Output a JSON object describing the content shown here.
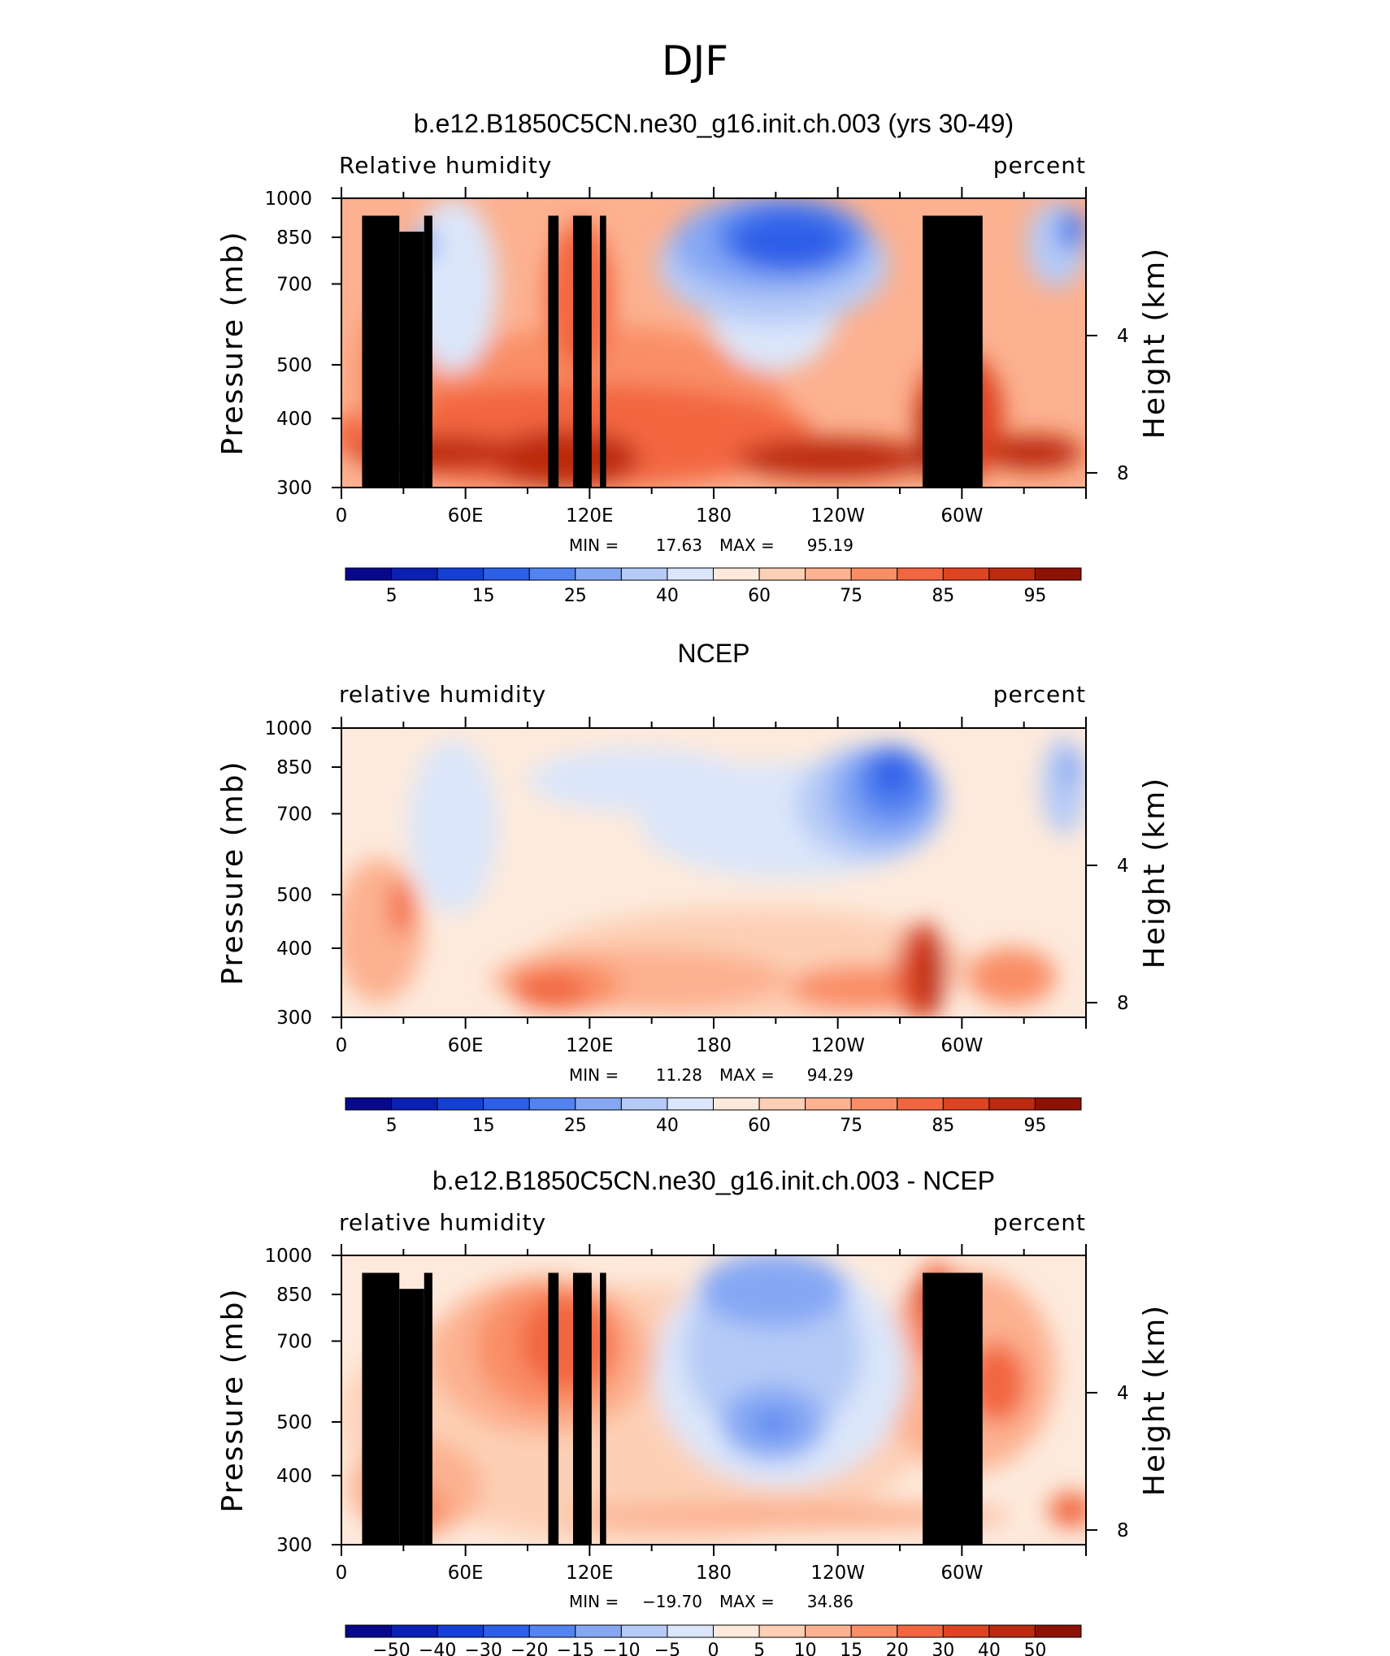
{
  "main_title": "DJF",
  "colors": {
    "rh_palette": [
      "#08088c",
      "#0a1fb4",
      "#1540d6",
      "#2e5fe8",
      "#5283f0",
      "#86a8f4",
      "#b5caf6",
      "#dbe6fa",
      "#fdeadc",
      "#fdd0b6",
      "#fcb190",
      "#f98e66",
      "#f2663f",
      "#de4421",
      "#bc2a10",
      "#8e1105"
    ],
    "terrain": "#000000"
  },
  "chart_data": [
    {
      "type": "heatmap",
      "title": "b.e12.B1850C5CN.ne30_g16.init.ch.003 (yrs 30-49)",
      "left_label": "Relative humidity",
      "right_label": "percent",
      "xlabel": "",
      "ylabel": "Pressure (mb)",
      "y2label": "Height (km)",
      "x_ticks": [
        "0",
        "60E",
        "120E",
        "180",
        "120W",
        "60W"
      ],
      "x_range": [
        0,
        360
      ],
      "y_ticks": [
        "300",
        "400",
        "500",
        "700",
        "850",
        "1000"
      ],
      "y_range_mb": [
        1000,
        300
      ],
      "y2_ticks": [
        "8",
        "4"
      ],
      "min_label": "MIN =",
      "min_value": "17.63",
      "max_label": "MAX =",
      "max_value": "95.19",
      "contour_levels": [
        5,
        10,
        15,
        20,
        25,
        30,
        40,
        50,
        60,
        70,
        75,
        80,
        85,
        90,
        95
      ],
      "colorbar_labels": [
        "5",
        "15",
        "25",
        "40",
        "60",
        "75",
        "85",
        "95"
      ],
      "terrain": true,
      "variant": "model"
    },
    {
      "type": "heatmap",
      "title": "NCEP",
      "left_label": "relative humidity",
      "right_label": "percent",
      "xlabel": "",
      "ylabel": "Pressure (mb)",
      "y2label": "Height (km)",
      "x_ticks": [
        "0",
        "60E",
        "120E",
        "180",
        "120W",
        "60W"
      ],
      "x_range": [
        0,
        360
      ],
      "y_ticks": [
        "300",
        "400",
        "500",
        "700",
        "850",
        "1000"
      ],
      "y_range_mb": [
        1000,
        300
      ],
      "y2_ticks": [
        "8",
        "4"
      ],
      "min_label": "MIN =",
      "min_value": "11.28",
      "max_label": "MAX =",
      "max_value": "94.29",
      "contour_levels": [
        5,
        10,
        15,
        20,
        25,
        30,
        40,
        50,
        60,
        70,
        75,
        80,
        85,
        90,
        95
      ],
      "colorbar_labels": [
        "5",
        "15",
        "25",
        "40",
        "60",
        "75",
        "85",
        "95"
      ],
      "terrain": false,
      "variant": "obs"
    },
    {
      "type": "heatmap",
      "title": "b.e12.B1850C5CN.ne30_g16.init.ch.003 - NCEP",
      "left_label": "relative humidity",
      "right_label": "percent",
      "xlabel": "",
      "ylabel": "Pressure (mb)",
      "y2label": "Height (km)",
      "x_ticks": [
        "0",
        "60E",
        "120E",
        "180",
        "120W",
        "60W"
      ],
      "x_range": [
        0,
        360
      ],
      "y_ticks": [
        "300",
        "400",
        "500",
        "700",
        "850",
        "1000"
      ],
      "y_range_mb": [
        1000,
        300
      ],
      "y2_ticks": [
        "8",
        "4"
      ],
      "min_label": "MIN =",
      "min_value": "−19.70",
      "max_label": "MAX =",
      "max_value": "34.86",
      "contour_levels": [
        -50,
        -40,
        -30,
        -20,
        -15,
        -10,
        -5,
        0,
        5,
        10,
        15,
        20,
        30,
        40,
        50
      ],
      "colorbar_labels": [
        "−50",
        "−40",
        "−30",
        "−20",
        "−15",
        "−10",
        "−5",
        "0",
        "5",
        "10",
        "15",
        "20",
        "30",
        "40",
        "50"
      ],
      "terrain": true,
      "variant": "diff"
    }
  ]
}
